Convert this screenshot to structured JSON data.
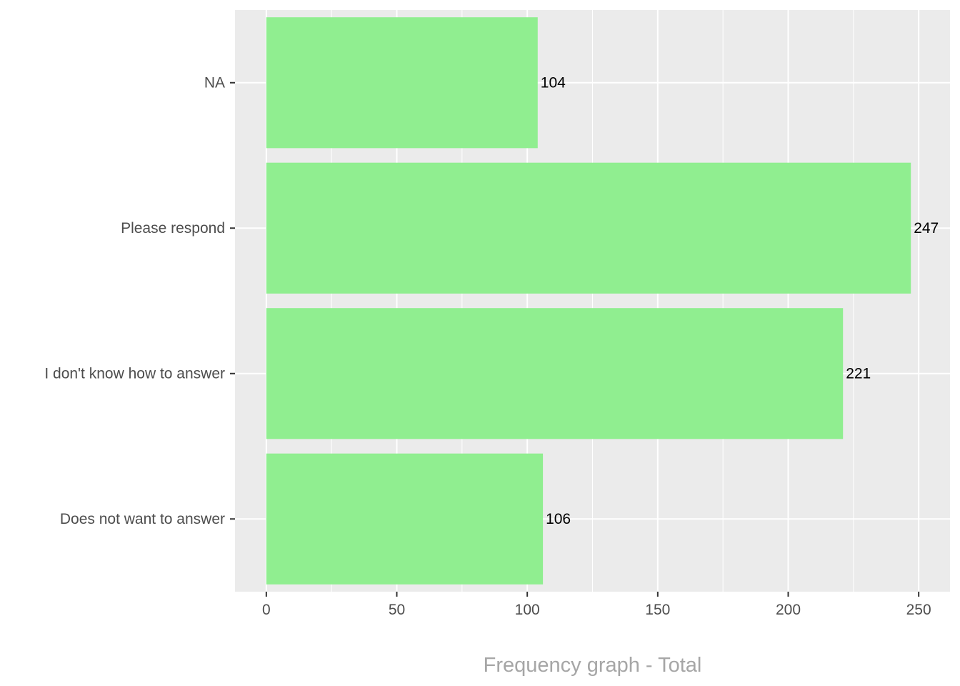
{
  "chart_data": {
    "type": "bar",
    "orientation": "horizontal",
    "categories": [
      "NA",
      "Please respond",
      "I don't know how to answer",
      "Does not want to answer"
    ],
    "values": [
      104,
      247,
      221,
      106
    ],
    "data_labels": [
      "104",
      "247",
      "221",
      "106"
    ],
    "title": "",
    "xlabel": "Frequency graph - Total",
    "ylabel": "",
    "xlim": [
      -12,
      262
    ],
    "x_ticks": [
      0,
      50,
      100,
      150,
      200,
      250
    ],
    "x_minor_ticks": [
      25,
      75,
      125,
      175,
      225
    ],
    "grid": true,
    "legend": "none"
  },
  "colors": {
    "bar_fill": "#90ee90",
    "panel_background": "#ebebeb",
    "grid_line": "#ffffff",
    "tick_text": "#4d4d4d",
    "tick_mark": "#333333",
    "axis_title": "#a6a6a6",
    "data_label": "#000000"
  }
}
